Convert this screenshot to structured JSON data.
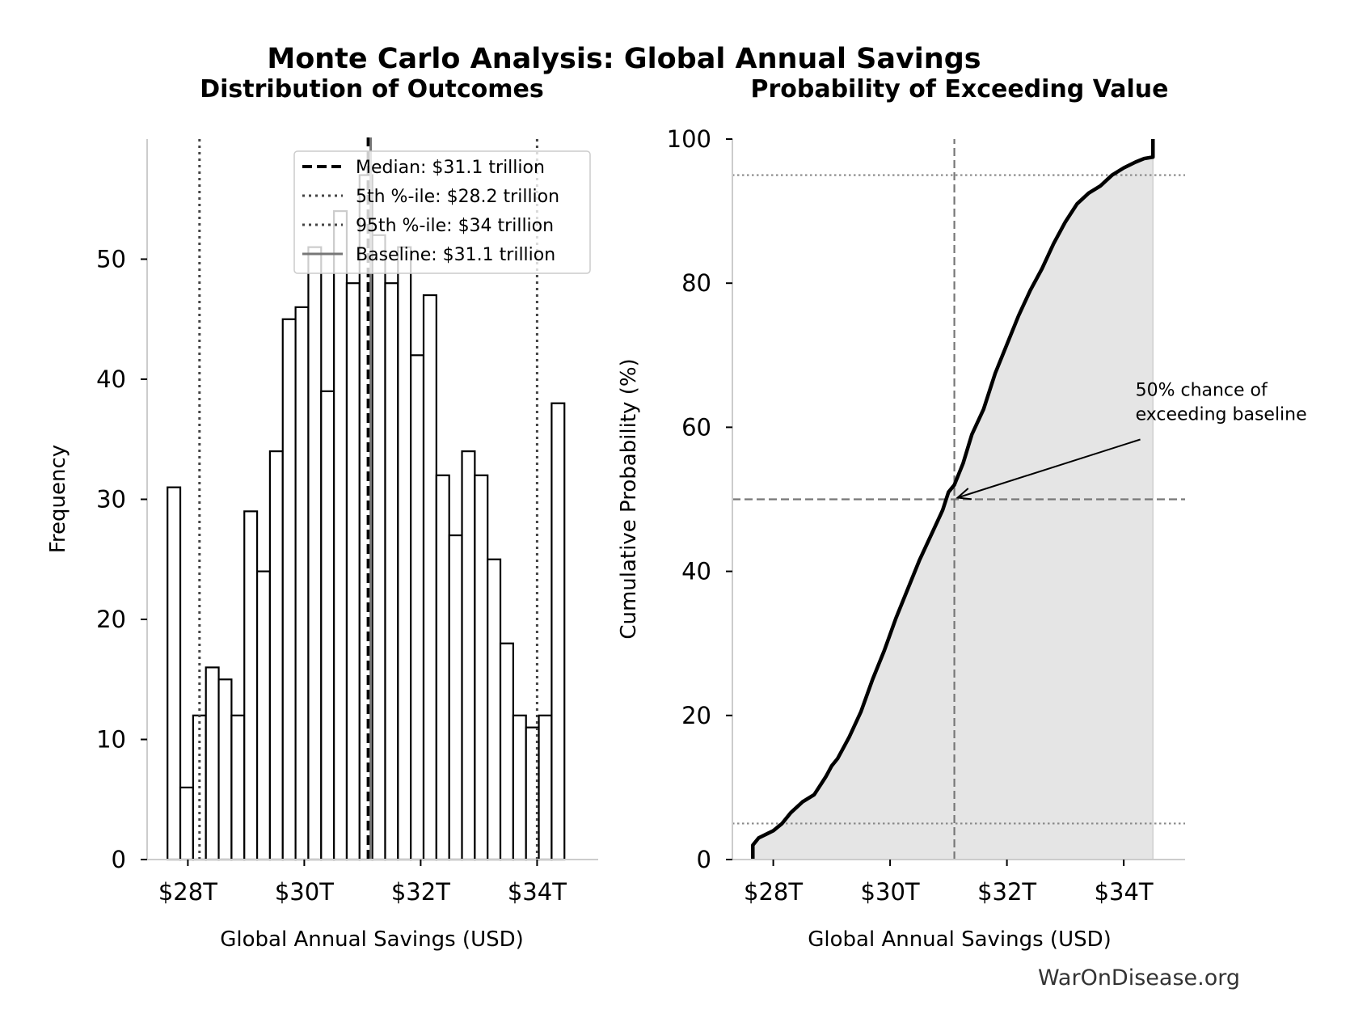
{
  "figure": {
    "title": "Monte Carlo Analysis: Global Annual Savings",
    "watermark": "WarOnDisease.org"
  },
  "chart_data": [
    {
      "type": "bar",
      "title": "Distribution of Outcomes",
      "xlabel": "Global Annual Savings (USD)",
      "ylabel": "Frequency",
      "xlim": [
        27.3,
        35.05
      ],
      "ylim": [
        0,
        60
      ],
      "xticks": [
        28,
        30,
        32,
        34
      ],
      "xtick_labels": [
        "$28T",
        "$30T",
        "$32T",
        "$34T"
      ],
      "yticks": [
        0,
        10,
        20,
        30,
        40,
        50
      ],
      "yticks_labels": [
        "0",
        "10",
        "20",
        "30",
        "40",
        "50"
      ],
      "bin_start": 27.65,
      "bin_width": 0.22,
      "values": [
        31,
        6,
        12,
        16,
        15,
        12,
        29,
        24,
        34,
        45,
        46,
        51,
        39,
        54,
        48,
        57,
        52,
        48,
        51,
        42,
        47,
        32,
        27,
        34,
        32,
        25,
        18,
        12,
        11,
        12,
        38
      ],
      "bar_fill": "#ffffff",
      "bar_edge": "#000000",
      "reference_lines": [
        {
          "label": "Median: $31.1 trillion",
          "x": 31.1,
          "style": "dashed",
          "color": "#000000"
        },
        {
          "label": "5th %-ile: $28.2 trillion",
          "x": 28.2,
          "style": "dotted",
          "color": "#444444"
        },
        {
          "label": "95th %-ile: $34 trillion",
          "x": 34.0,
          "style": "dotted",
          "color": "#444444"
        },
        {
          "label": "Baseline: $31.1 trillion",
          "x": 31.1,
          "style": "solid",
          "color": "#777777"
        }
      ],
      "legend_position": "top-right",
      "grid": false
    },
    {
      "type": "line",
      "title": "Probability of Exceeding Value",
      "xlabel": "Global Annual Savings (USD)",
      "ylabel": "Cumulative Probability (%)",
      "xlim": [
        27.3,
        35.05
      ],
      "ylim": [
        0,
        100
      ],
      "xticks": [
        28,
        30,
        32,
        34
      ],
      "xtick_labels": [
        "$28T",
        "$30T",
        "$32T",
        "$34T"
      ],
      "yticks": [
        0,
        20,
        40,
        60,
        80,
        100
      ],
      "ytick_labels": [
        "0",
        "20",
        "40",
        "60",
        "80",
        "100"
      ],
      "series": [
        {
          "x": [
            27.65,
            27.65,
            27.75,
            27.9,
            28.0,
            28.15,
            28.3,
            28.5,
            28.7,
            28.9,
            29.0,
            29.1,
            29.3,
            29.5,
            29.7,
            29.9,
            30.1,
            30.3,
            30.5,
            30.7,
            30.9,
            31.0,
            31.1,
            31.25,
            31.4,
            31.6,
            31.8,
            32.0,
            32.2,
            32.4,
            32.6,
            32.8,
            33.0,
            33.2,
            33.4,
            33.6,
            33.8,
            34.0,
            34.2,
            34.35,
            34.5,
            34.5
          ],
          "y": [
            0,
            2,
            3,
            3.6,
            4,
            5,
            6.5,
            8,
            9,
            11.5,
            13,
            14,
            17,
            20.5,
            25,
            29,
            33.5,
            37.5,
            41.5,
            45,
            48.5,
            51,
            52,
            55,
            59,
            62.5,
            67.5,
            71.5,
            75.5,
            79,
            82,
            85.5,
            88.5,
            91,
            92.5,
            93.5,
            95,
            96,
            96.8,
            97.3,
            97.5,
            100
          ]
        }
      ],
      "fill_color": "#e5e5e5",
      "reference_lines": [
        {
          "axis": "x",
          "value": 31.1,
          "style": "dashed",
          "color": "#777777"
        },
        {
          "axis": "y",
          "value": 50,
          "style": "dashed",
          "color": "#777777"
        },
        {
          "axis": "y",
          "value": 5,
          "style": "dotted",
          "color": "#888888"
        },
        {
          "axis": "y",
          "value": 95,
          "style": "dotted",
          "color": "#888888"
        }
      ],
      "annotation": {
        "lines": [
          "50% chance of",
          "exceeding baseline"
        ],
        "point": [
          31.1,
          50
        ],
        "text_at": [
          34.2,
          61
        ]
      },
      "grid": false
    }
  ]
}
